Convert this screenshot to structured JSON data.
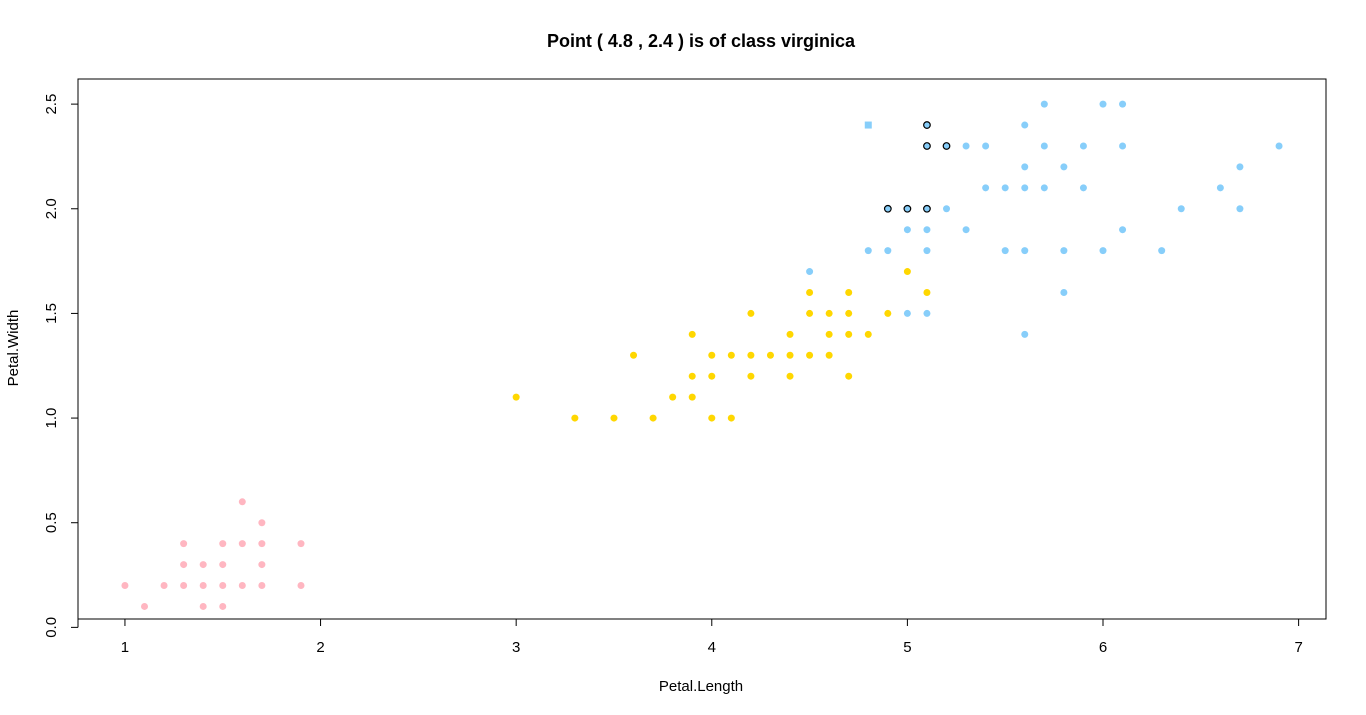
{
  "chart_data": {
    "type": "scatter",
    "title": "Point ( 4.8 , 2.4 ) is of class virginica",
    "xlabel": "Petal.Length",
    "ylabel": "Petal.Width",
    "xlim": [
      0.76,
      7.14
    ],
    "ylim": [
      0.04,
      2.62
    ],
    "x_ticks": [
      1,
      2,
      3,
      4,
      5,
      6,
      7
    ],
    "y_ticks": [
      0.0,
      0.5,
      1.0,
      1.5,
      2.0,
      2.5
    ],
    "x_tick_labels": [
      "1",
      "2",
      "3",
      "4",
      "5",
      "6",
      "7"
    ],
    "y_tick_labels": [
      "0.0",
      "0.5",
      "1.0",
      "1.5",
      "2.0",
      "2.5"
    ],
    "grid": false,
    "legend": "none",
    "series": [
      {
        "color": "#ffb6c1",
        "marker": "circle",
        "points": [
          [
            1.0,
            0.2
          ],
          [
            1.1,
            0.1
          ],
          [
            1.2,
            0.2
          ],
          [
            1.3,
            0.2
          ],
          [
            1.3,
            0.3
          ],
          [
            1.3,
            0.4
          ],
          [
            1.4,
            0.1
          ],
          [
            1.4,
            0.2
          ],
          [
            1.4,
            0.3
          ],
          [
            1.5,
            0.1
          ],
          [
            1.5,
            0.2
          ],
          [
            1.5,
            0.3
          ],
          [
            1.5,
            0.4
          ],
          [
            1.6,
            0.2
          ],
          [
            1.6,
            0.4
          ],
          [
            1.6,
            0.6
          ],
          [
            1.7,
            0.2
          ],
          [
            1.7,
            0.3
          ],
          [
            1.7,
            0.4
          ],
          [
            1.7,
            0.5
          ],
          [
            1.9,
            0.2
          ],
          [
            1.9,
            0.4
          ]
        ]
      },
      {
        "color": "#ffd700",
        "marker": "circle",
        "points": [
          [
            3.0,
            1.1
          ],
          [
            3.3,
            1.0
          ],
          [
            3.5,
            1.0
          ],
          [
            3.6,
            1.3
          ],
          [
            3.7,
            1.0
          ],
          [
            3.8,
            1.1
          ],
          [
            3.9,
            1.1
          ],
          [
            3.9,
            1.2
          ],
          [
            3.9,
            1.4
          ],
          [
            4.0,
            1.0
          ],
          [
            4.0,
            1.2
          ],
          [
            4.0,
            1.3
          ],
          [
            4.1,
            1.0
          ],
          [
            4.1,
            1.3
          ],
          [
            4.2,
            1.2
          ],
          [
            4.2,
            1.3
          ],
          [
            4.2,
            1.5
          ],
          [
            4.3,
            1.3
          ],
          [
            4.4,
            1.2
          ],
          [
            4.4,
            1.3
          ],
          [
            4.4,
            1.4
          ],
          [
            4.5,
            1.3
          ],
          [
            4.5,
            1.5
          ],
          [
            4.5,
            1.6
          ],
          [
            4.6,
            1.3
          ],
          [
            4.6,
            1.4
          ],
          [
            4.6,
            1.5
          ],
          [
            4.7,
            1.2
          ],
          [
            4.7,
            1.4
          ],
          [
            4.7,
            1.5
          ],
          [
            4.7,
            1.6
          ],
          [
            4.8,
            1.4
          ],
          [
            4.9,
            1.5
          ],
          [
            5.0,
            1.7
          ],
          [
            5.1,
            1.6
          ]
        ]
      },
      {
        "color": "#87cefa",
        "marker": "circle",
        "points": [
          [
            4.5,
            1.7
          ],
          [
            4.8,
            1.8
          ],
          [
            4.9,
            1.8
          ],
          [
            5.0,
            1.5
          ],
          [
            5.0,
            1.9
          ],
          [
            5.1,
            1.5
          ],
          [
            5.1,
            1.8
          ],
          [
            5.1,
            1.9
          ],
          [
            5.2,
            2.0
          ],
          [
            5.3,
            1.9
          ],
          [
            5.3,
            2.3
          ],
          [
            5.4,
            2.1
          ],
          [
            5.4,
            2.3
          ],
          [
            5.5,
            1.8
          ],
          [
            5.5,
            2.1
          ],
          [
            5.6,
            1.4
          ],
          [
            5.6,
            1.8
          ],
          [
            5.6,
            2.1
          ],
          [
            5.6,
            2.2
          ],
          [
            5.6,
            2.4
          ],
          [
            5.7,
            2.1
          ],
          [
            5.7,
            2.3
          ],
          [
            5.7,
            2.5
          ],
          [
            5.8,
            1.6
          ],
          [
            5.8,
            1.8
          ],
          [
            5.8,
            2.2
          ],
          [
            5.9,
            2.1
          ],
          [
            5.9,
            2.3
          ],
          [
            6.0,
            1.8
          ],
          [
            6.0,
            2.5
          ],
          [
            6.1,
            1.9
          ],
          [
            6.1,
            2.3
          ],
          [
            6.1,
            2.5
          ],
          [
            6.3,
            1.8
          ],
          [
            6.4,
            2.0
          ],
          [
            6.6,
            2.1
          ],
          [
            6.7,
            2.0
          ],
          [
            6.7,
            2.2
          ],
          [
            6.9,
            2.3
          ]
        ]
      },
      {
        "color": "#87cefa",
        "marker": "circle-outlined",
        "outline": "#000000",
        "points": [
          [
            4.9,
            2.0
          ],
          [
            5.0,
            2.0
          ],
          [
            5.1,
            2.0
          ],
          [
            5.1,
            2.3
          ],
          [
            5.1,
            2.4
          ],
          [
            5.2,
            2.3
          ]
        ]
      },
      {
        "color": "#87cefa",
        "marker": "square",
        "points": [
          [
            4.8,
            2.4
          ]
        ]
      }
    ]
  }
}
